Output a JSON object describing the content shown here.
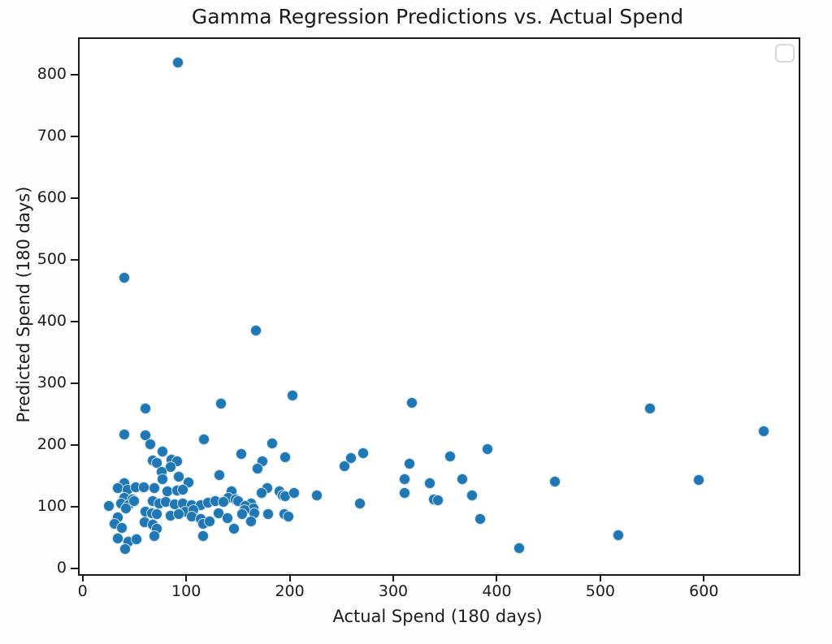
{
  "chart_data": {
    "type": "scatter",
    "title": "Gamma Regression Predictions vs. Actual Spend",
    "xlabel": "Actual Spend (180 days)",
    "ylabel": "Predicted Spend (180 days)",
    "x_ticks": [
      0,
      100,
      200,
      300,
      400,
      500,
      600
    ],
    "y_ticks": [
      0,
      100,
      200,
      300,
      400,
      500,
      600,
      700,
      800
    ],
    "xlim": [
      -4.5,
      690
    ],
    "ylim": [
      -6.5,
      861
    ],
    "grid": false,
    "legend": {
      "visible": true,
      "position": "upper right",
      "entries": []
    },
    "marker_color": "#1f77b4",
    "marker_edge_color": "#ffffff",
    "axis_color": "#1a1a1a",
    "points": [
      [
        92,
        820
      ],
      [
        40,
        472
      ],
      [
        167,
        386
      ],
      [
        203,
        281
      ],
      [
        318,
        269
      ],
      [
        134,
        267
      ],
      [
        61,
        259
      ],
      [
        548,
        260
      ],
      [
        658,
        222
      ],
      [
        40,
        217
      ],
      [
        61,
        216
      ],
      [
        117,
        210
      ],
      [
        65,
        201
      ],
      [
        183,
        203
      ],
      [
        196,
        181
      ],
      [
        77,
        189
      ],
      [
        153,
        186
      ],
      [
        391,
        194
      ],
      [
        355,
        182
      ],
      [
        174,
        174
      ],
      [
        169,
        162
      ],
      [
        86,
        176
      ],
      [
        91,
        174
      ],
      [
        68,
        175
      ],
      [
        72,
        171
      ],
      [
        85,
        165
      ],
      [
        253,
        166
      ],
      [
        259,
        179
      ],
      [
        271,
        187
      ],
      [
        316,
        170
      ],
      [
        76,
        157
      ],
      [
        178,
        130
      ],
      [
        173,
        123
      ],
      [
        190,
        125
      ],
      [
        193,
        119
      ],
      [
        196,
        117
      ],
      [
        204,
        123
      ],
      [
        226,
        119
      ],
      [
        268,
        106
      ],
      [
        144,
        125
      ],
      [
        141,
        114
      ],
      [
        148,
        112
      ],
      [
        150,
        110
      ],
      [
        163,
        106
      ],
      [
        157,
        101
      ],
      [
        93,
        149
      ],
      [
        77,
        145
      ],
      [
        102,
        139
      ],
      [
        132,
        152
      ],
      [
        40,
        138
      ],
      [
        34,
        130
      ],
      [
        43,
        128
      ],
      [
        51,
        132
      ],
      [
        59,
        132
      ],
      [
        69,
        131
      ],
      [
        82,
        125
      ],
      [
        91,
        127
      ],
      [
        97,
        128
      ],
      [
        40,
        114
      ],
      [
        48,
        112
      ],
      [
        37,
        106
      ],
      [
        44,
        103
      ],
      [
        25,
        101
      ],
      [
        42,
        97
      ],
      [
        50,
        110
      ],
      [
        68,
        110
      ],
      [
        74,
        106
      ],
      [
        80,
        108
      ],
      [
        89,
        104
      ],
      [
        97,
        106
      ],
      [
        105,
        103
      ],
      [
        114,
        103
      ],
      [
        121,
        107
      ],
      [
        128,
        110
      ],
      [
        136,
        108
      ],
      [
        165,
        97
      ],
      [
        166,
        90
      ],
      [
        179,
        88
      ],
      [
        195,
        88
      ],
      [
        199,
        84
      ],
      [
        156,
        95
      ],
      [
        154,
        88
      ],
      [
        163,
        77
      ],
      [
        146,
        64
      ],
      [
        99,
        92
      ],
      [
        107,
        95
      ],
      [
        85,
        86
      ],
      [
        93,
        88
      ],
      [
        105,
        84
      ],
      [
        114,
        81
      ],
      [
        131,
        90
      ],
      [
        140,
        82
      ],
      [
        61,
        92
      ],
      [
        67,
        90
      ],
      [
        72,
        88
      ],
      [
        34,
        83
      ],
      [
        31,
        72
      ],
      [
        38,
        66
      ],
      [
        60,
        75
      ],
      [
        68,
        71
      ],
      [
        72,
        64
      ],
      [
        116,
        73
      ],
      [
        123,
        77
      ],
      [
        69,
        53
      ],
      [
        34,
        49
      ],
      [
        44,
        43
      ],
      [
        52,
        48
      ],
      [
        41,
        32
      ],
      [
        116,
        53
      ],
      [
        311,
        145
      ],
      [
        311,
        122
      ],
      [
        335,
        138
      ],
      [
        339,
        112
      ],
      [
        343,
        111
      ],
      [
        367,
        145
      ],
      [
        376,
        119
      ],
      [
        384,
        81
      ],
      [
        422,
        33
      ],
      [
        456,
        141
      ],
      [
        517,
        54
      ],
      [
        595,
        143
      ]
    ]
  }
}
